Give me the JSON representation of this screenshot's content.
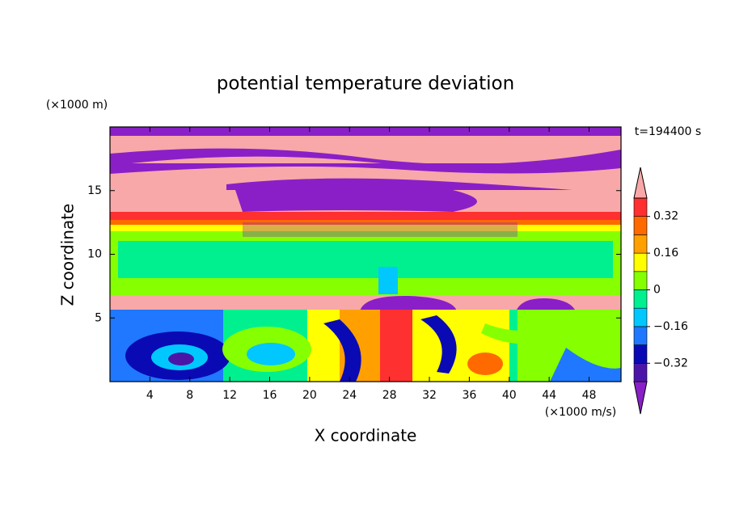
{
  "chart_data": {
    "type": "contour",
    "title": "potential temperature deviation",
    "x_label": "X coordinate",
    "y_label": "Z coordinate",
    "x_unit": "(×1000 m/s)",
    "y_unit": "(×1000 m)",
    "time_label": "t=194400 s",
    "xlim": [
      0,
      51.2
    ],
    "ylim": [
      0,
      20
    ],
    "xticks": [
      4,
      8,
      12,
      16,
      20,
      24,
      28,
      32,
      36,
      40,
      44,
      48
    ],
    "yticks": [
      5,
      10,
      15
    ],
    "colorbar": {
      "levels": [
        -0.4,
        -0.32,
        -0.24,
        -0.16,
        -0.08,
        0,
        0.08,
        0.16,
        0.24,
        0.32,
        0.4
      ],
      "colors": [
        "#8a1fc8",
        "#4b16a8",
        "#0a0ab4",
        "#1f78ff",
        "#00c8ff",
        "#00f090",
        "#86ff00",
        "#ffff00",
        "#ffa000",
        "#ff6a00",
        "#ff3030",
        "#f8a8a8"
      ],
      "ticks": [
        {
          "value": -0.32,
          "label": "−0.32"
        },
        {
          "value": -0.16,
          "label": "−0.16"
        },
        0,
        0.16,
        0.32
      ]
    }
  }
}
